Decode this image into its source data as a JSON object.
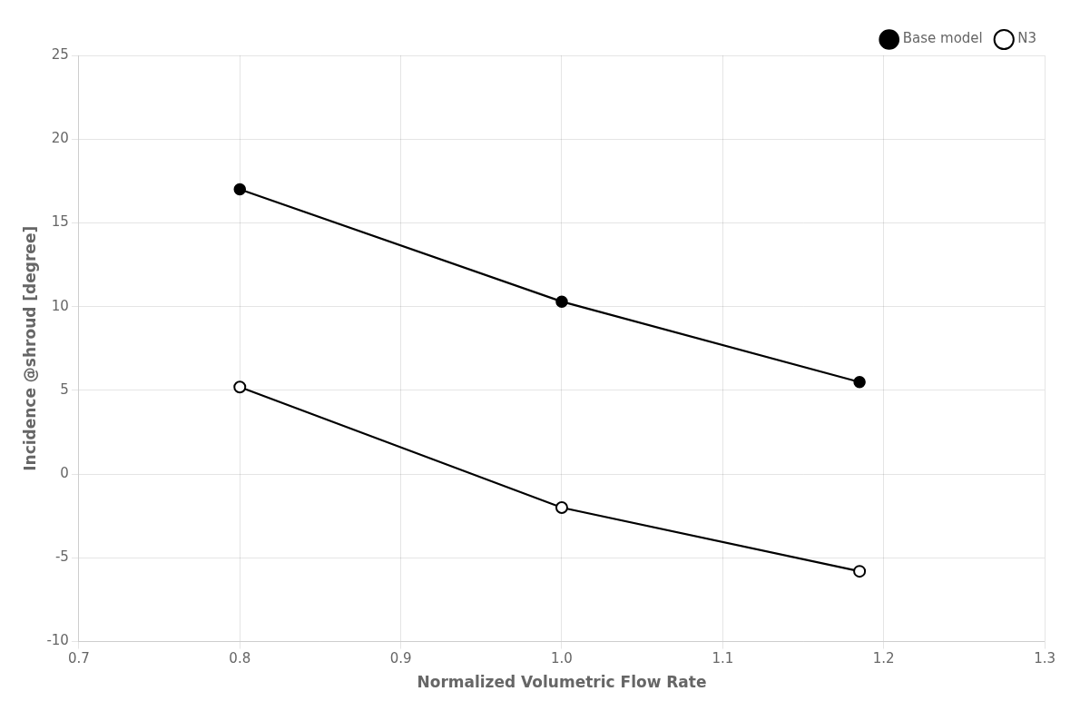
{
  "chart_data": {
    "type": "line",
    "xlabel": "Normalized Volumetric Flow Rate",
    "ylabel": "Incidence @shroud [degree]",
    "xlim": [
      0.7,
      1.3
    ],
    "ylim": [
      -10,
      25
    ],
    "xticks": [
      0.7,
      0.8,
      0.9,
      {
        "value": 1,
        "label": "1.0"
      },
      1.1,
      1.2,
      1.3
    ],
    "yticks": [
      -10,
      -5,
      0,
      5,
      10,
      15,
      20,
      25
    ],
    "grid": true,
    "legend": "upper right",
    "series": [
      {
        "name": "Base model",
        "color": "#000000",
        "marker": "filled_circle",
        "x": [
          0.8,
          1.0,
          1.185
        ],
        "values": [
          17.0,
          10.3,
          5.5
        ]
      },
      {
        "name": "N3",
        "color": "#000000",
        "marker": "open_circle",
        "x": [
          0.8,
          1.0,
          1.185
        ],
        "values": [
          5.2,
          -2.0,
          -5.8
        ]
      }
    ]
  }
}
